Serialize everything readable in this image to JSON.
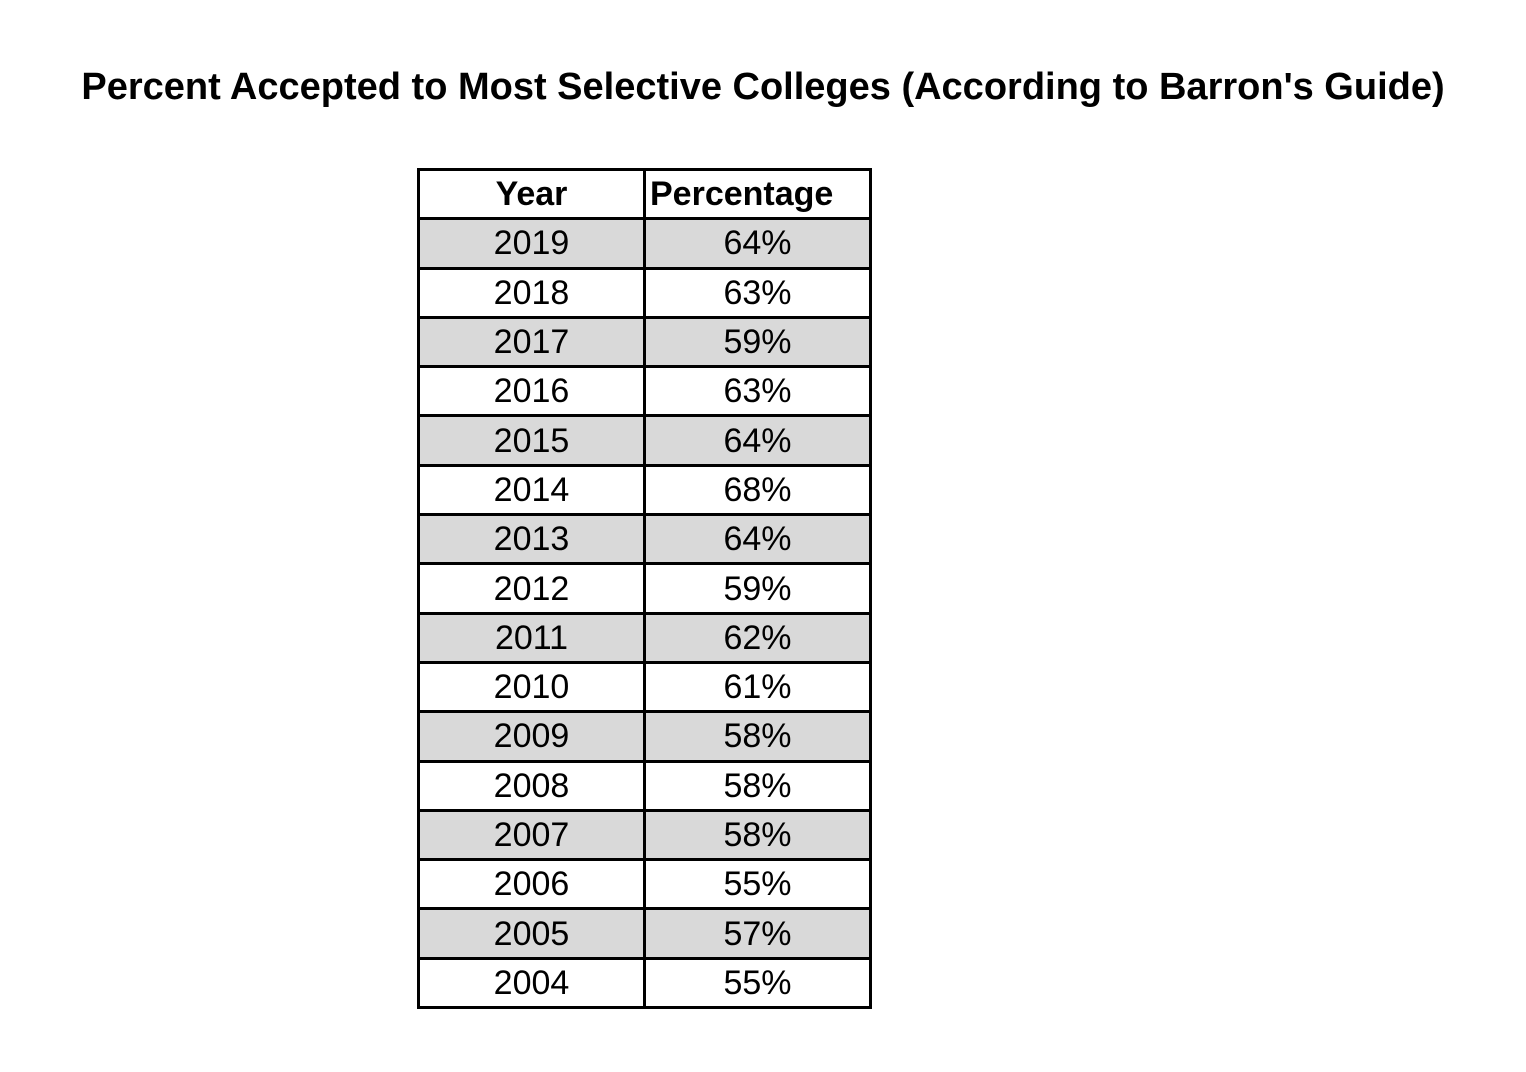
{
  "title": "Percent Accepted to Most Selective Colleges (According to Barron's Guide)",
  "table": {
    "header": [
      "Year",
      "Percentage"
    ],
    "rows": [
      [
        "2019",
        "64%"
      ],
      [
        "2018",
        "63%"
      ],
      [
        "2017",
        "59%"
      ],
      [
        "2016",
        "63%"
      ],
      [
        "2015",
        "64%"
      ],
      [
        "2014",
        "68%"
      ],
      [
        "2013",
        "64%"
      ],
      [
        "2012",
        "59%"
      ],
      [
        "2011",
        "62%"
      ],
      [
        "2010",
        "61%"
      ],
      [
        "2009",
        "58%"
      ],
      [
        "2008",
        "58%"
      ],
      [
        "2007",
        "58%"
      ],
      [
        "2006",
        "55%"
      ],
      [
        "2005",
        "57%"
      ],
      [
        "2004",
        "55%"
      ]
    ]
  }
}
